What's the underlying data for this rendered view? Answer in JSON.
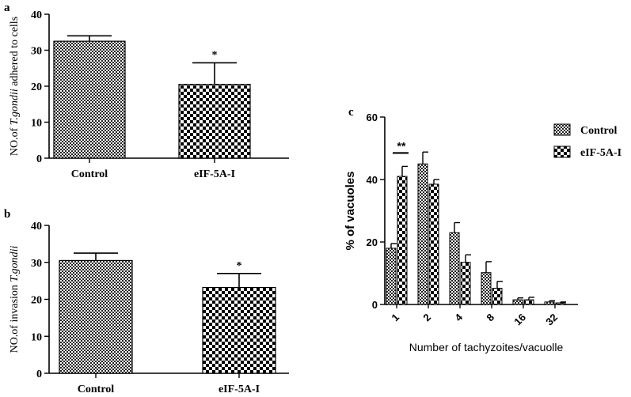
{
  "panels": {
    "a": "a",
    "b": "b",
    "c": "c"
  },
  "chart_data": [
    {
      "type": "bar",
      "panel": "a",
      "categories": [
        "Control",
        "eIF-5A-I"
      ],
      "values": [
        32.5,
        20.5
      ],
      "errors": [
        1.5,
        6.0
      ],
      "significance": [
        "",
        "*"
      ],
      "ylabel_prefix": "NO.of ",
      "ylabel_italic": "T.gondii",
      "ylabel_suffix": " adhered to cells",
      "ylim": [
        0,
        40
      ],
      "yticks": [
        "0",
        "10",
        "20",
        "30",
        "40"
      ],
      "grid": false,
      "patterns": [
        "fine-check",
        "coarse-check"
      ]
    },
    {
      "type": "bar",
      "panel": "b",
      "categories": [
        "Control",
        "eIF-5A-I"
      ],
      "values": [
        30.5,
        23.2
      ],
      "errors": [
        2.0,
        3.8
      ],
      "significance": [
        "",
        "*"
      ],
      "ylabel_prefix": "NO.of invasion ",
      "ylabel_italic": "T.gondii",
      "ylabel_suffix": "",
      "ylim": [
        0,
        40
      ],
      "yticks": [
        "0",
        "10",
        "20",
        "30",
        "40"
      ],
      "grid": false,
      "patterns": [
        "fine-check",
        "coarse-check"
      ]
    },
    {
      "type": "bar",
      "panel": "c",
      "categories": [
        "1",
        "2",
        "4",
        "8",
        "16",
        "32"
      ],
      "series": [
        {
          "name": "Control",
          "values": [
            18,
            45,
            23,
            10.2,
            1.5,
            0.8
          ],
          "errors": [
            1.5,
            3.8,
            3.2,
            3.5,
            0.6,
            0.4
          ]
        },
        {
          "name": "eIF-5A-I",
          "values": [
            41,
            38.5,
            13.5,
            5.2,
            1.5,
            0.5
          ],
          "errors": [
            3.2,
            1.5,
            2.4,
            2.2,
            0.8,
            0.3
          ]
        }
      ],
      "significance_label": "**",
      "ylabel": "% of vacuoles",
      "xlabel": "Number of tachyzoites/vacuolle",
      "ylim": [
        0,
        60
      ],
      "yticks": [
        "0",
        "20",
        "40",
        "60"
      ],
      "legend_position": "top-right",
      "grid": false,
      "patterns": [
        "fine-check",
        "coarse-check"
      ]
    }
  ]
}
